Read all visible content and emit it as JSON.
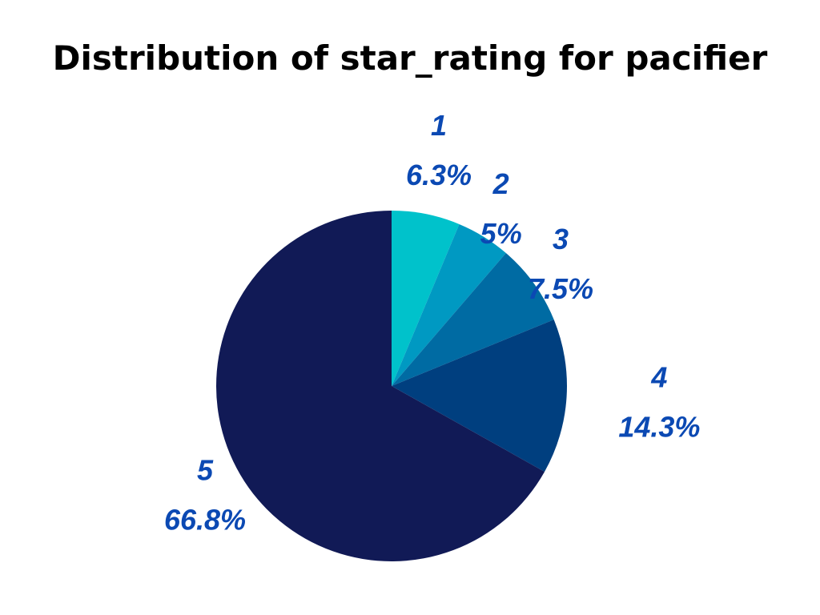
{
  "chart_data": {
    "type": "pie",
    "title": "Distribution of star_rating for pacifier",
    "categories": [
      "1",
      "2",
      "3",
      "4",
      "5"
    ],
    "values": [
      6.3,
      5,
      7.5,
      14.3,
      66.8
    ],
    "value_labels": [
      "6.3%",
      "5%",
      "7.5%",
      "14.3%",
      "66.8%"
    ],
    "colors": [
      "#00c2cb",
      "#0099c2",
      "#006ba3",
      "#003f7f",
      "#111a56"
    ],
    "label_color": "#0b49b3",
    "start_angle_deg": 0,
    "direction": "clockwise",
    "legend": "none"
  }
}
